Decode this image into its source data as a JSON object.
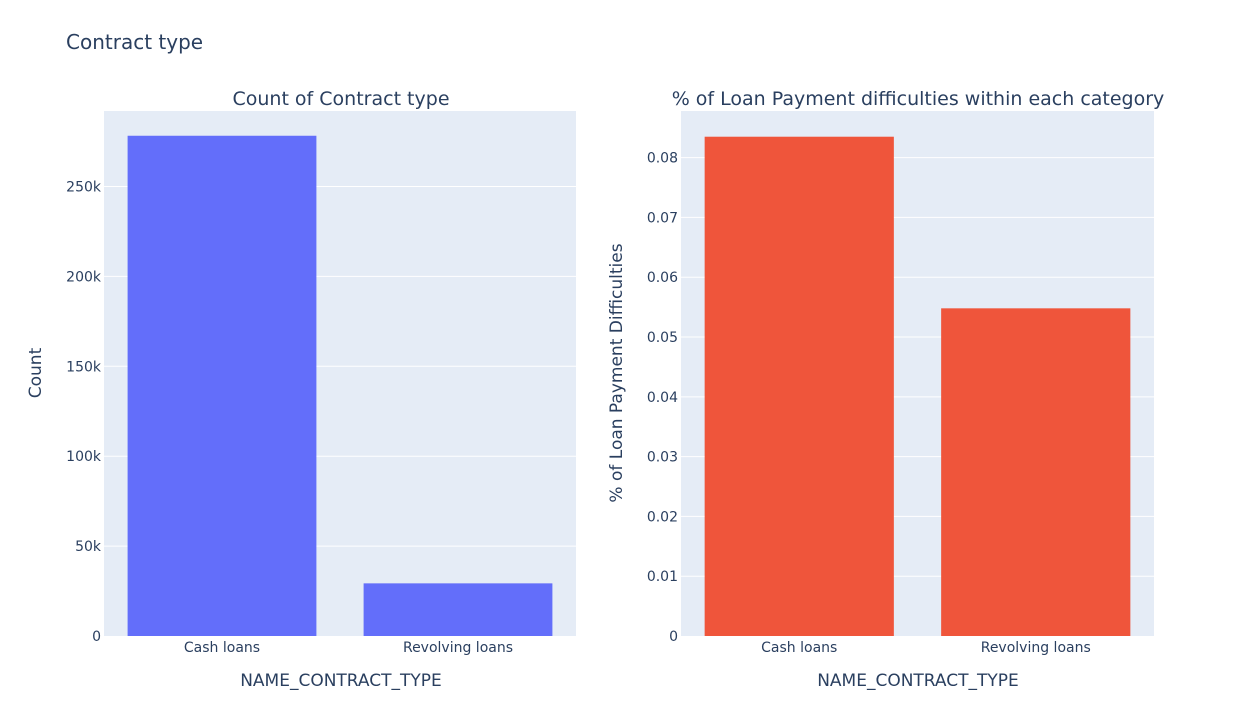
{
  "figure": {
    "title": "Contract type"
  },
  "chart_data": [
    {
      "type": "bar",
      "title": "Count of Contract type",
      "xlabel": "NAME_CONTRACT_TYPE",
      "ylabel": "Count",
      "categories": [
        "Cash loans",
        "Revolving loans"
      ],
      "values": [
        278232,
        29279
      ],
      "ylim": [
        0,
        292000
      ],
      "yticks": [
        0,
        50000,
        100000,
        150000,
        200000,
        250000
      ],
      "ytick_labels": [
        "0",
        "50k",
        "100k",
        "150k",
        "200k",
        "250k"
      ],
      "color": "#636efa",
      "grid": true
    },
    {
      "type": "bar",
      "title": "% of Loan Payment difficulties within each category",
      "xlabel": "NAME_CONTRACT_TYPE",
      "ylabel": "% of Loan Payment Difficulties",
      "categories": [
        "Cash loans",
        "Revolving loans"
      ],
      "values": [
        0.0835,
        0.0548
      ],
      "ylim": [
        0,
        0.0878
      ],
      "yticks": [
        0,
        0.01,
        0.02,
        0.03,
        0.04,
        0.05,
        0.06,
        0.07,
        0.08
      ],
      "ytick_labels": [
        "0",
        "0.01",
        "0.02",
        "0.03",
        "0.04",
        "0.05",
        "0.06",
        "0.07",
        "0.08"
      ],
      "color": "#ef553b",
      "grid": true
    }
  ]
}
